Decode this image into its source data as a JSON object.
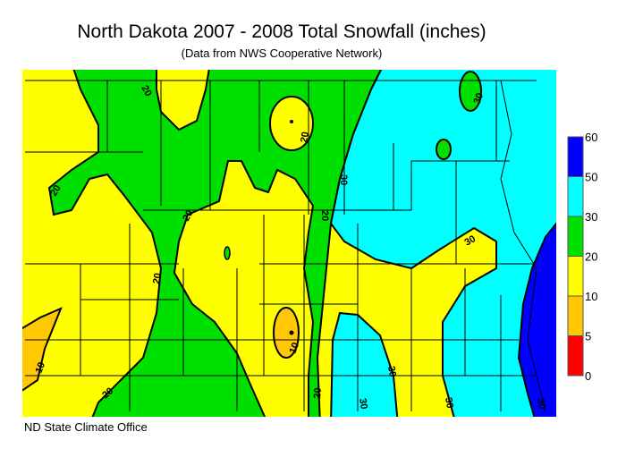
{
  "title": "North Dakota 2007 - 2008 Total Snowfall (inches)",
  "subtitle": "(Data from NWS Cooperative Network)",
  "footer": "ND State Climate Office",
  "legend": {
    "labels": [
      "60",
      "50",
      "30",
      "20",
      "10",
      "5",
      "0"
    ],
    "bins": [
      {
        "range": "50-60",
        "color": "#0000ff"
      },
      {
        "range": "30-50",
        "color": "#00ffff"
      },
      {
        "range": "20-30",
        "color": "#00e000"
      },
      {
        "range": "10-20",
        "color": "#ffff00"
      },
      {
        "range": "5-10",
        "color": "#ffc800"
      },
      {
        "range": "0-5",
        "color": "#ff0000"
      }
    ]
  },
  "contour_labels": [
    "20",
    "20",
    "20",
    "20",
    "20",
    "20",
    "30",
    "30",
    "30",
    "30",
    "30",
    "30",
    "30",
    "10",
    "10",
    "20",
    "30"
  ]
}
